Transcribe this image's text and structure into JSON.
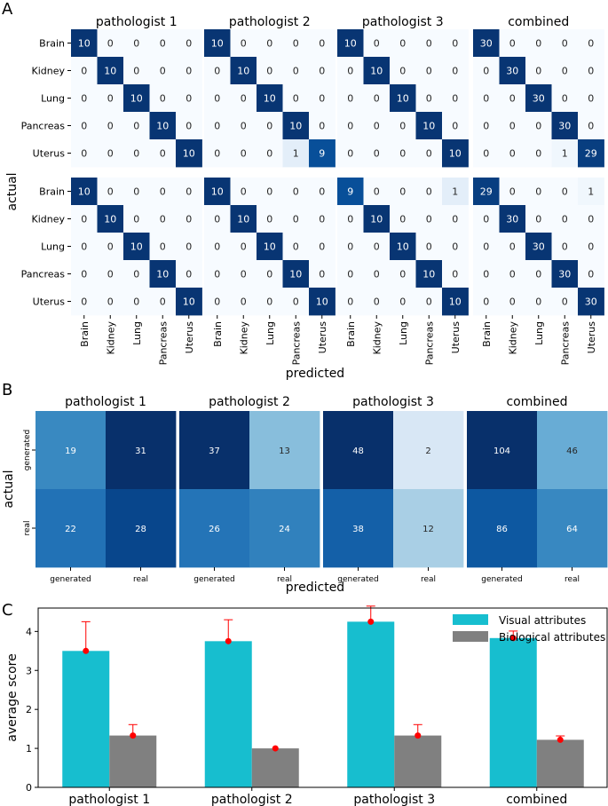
{
  "panel_letters": {
    "a": "A",
    "b": "B",
    "c": "C"
  },
  "chart_data": [
    {
      "type": "heatmap",
      "panel": "A",
      "titles": [
        "pathologist 1",
        "pathologist 2",
        "pathologist 3",
        "combined"
      ],
      "row_labels": [
        "Brain",
        "Kidney",
        "Lung",
        "Pancreas",
        "Uterus"
      ],
      "col_labels": [
        "Brain",
        "Kidney",
        "Lung",
        "Pancreas",
        "Uterus"
      ],
      "xlabel": "predicted",
      "ylabel": "actual",
      "groups": [
        {
          "matrices": [
            [
              [
                10,
                0,
                0,
                0,
                0
              ],
              [
                0,
                10,
                0,
                0,
                0
              ],
              [
                0,
                0,
                10,
                0,
                0
              ],
              [
                0,
                0,
                0,
                10,
                0
              ],
              [
                0,
                0,
                0,
                0,
                10
              ]
            ],
            [
              [
                10,
                0,
                0,
                0,
                0
              ],
              [
                0,
                10,
                0,
                0,
                0
              ],
              [
                0,
                0,
                10,
                0,
                0
              ],
              [
                0,
                0,
                0,
                10,
                0
              ],
              [
                0,
                0,
                0,
                1,
                9
              ]
            ],
            [
              [
                10,
                0,
                0,
                0,
                0
              ],
              [
                0,
                10,
                0,
                0,
                0
              ],
              [
                0,
                0,
                10,
                0,
                0
              ],
              [
                0,
                0,
                0,
                10,
                0
              ],
              [
                0,
                0,
                0,
                0,
                10
              ]
            ],
            [
              [
                30,
                0,
                0,
                0,
                0
              ],
              [
                0,
                30,
                0,
                0,
                0
              ],
              [
                0,
                0,
                30,
                0,
                0
              ],
              [
                0,
                0,
                0,
                30,
                0
              ],
              [
                0,
                0,
                0,
                1,
                29
              ]
            ]
          ]
        },
        {
          "matrices": [
            [
              [
                10,
                0,
                0,
                0,
                0
              ],
              [
                0,
                10,
                0,
                0,
                0
              ],
              [
                0,
                0,
                10,
                0,
                0
              ],
              [
                0,
                0,
                0,
                10,
                0
              ],
              [
                0,
                0,
                0,
                0,
                10
              ]
            ],
            [
              [
                10,
                0,
                0,
                0,
                0
              ],
              [
                0,
                10,
                0,
                0,
                0
              ],
              [
                0,
                0,
                10,
                0,
                0
              ],
              [
                0,
                0,
                0,
                10,
                0
              ],
              [
                0,
                0,
                0,
                0,
                10
              ]
            ],
            [
              [
                9,
                0,
                0,
                0,
                1
              ],
              [
                0,
                10,
                0,
                0,
                0
              ],
              [
                0,
                0,
                10,
                0,
                0
              ],
              [
                0,
                0,
                0,
                10,
                0
              ],
              [
                0,
                0,
                0,
                0,
                10
              ]
            ],
            [
              [
                29,
                0,
                0,
                0,
                1
              ],
              [
                0,
                30,
                0,
                0,
                0
              ],
              [
                0,
                0,
                30,
                0,
                0
              ],
              [
                0,
                0,
                0,
                30,
                0
              ],
              [
                0,
                0,
                0,
                0,
                30
              ]
            ]
          ]
        }
      ]
    },
    {
      "type": "heatmap",
      "panel": "B",
      "titles": [
        "pathologist 1",
        "pathologist 2",
        "pathologist 3",
        "combined"
      ],
      "row_labels": [
        "generated",
        "real"
      ],
      "col_labels": [
        "generated",
        "real"
      ],
      "xlabel": "predicted",
      "ylabel": "actual",
      "matrices": [
        [
          [
            19,
            31
          ],
          [
            22,
            28
          ]
        ],
        [
          [
            37,
            13
          ],
          [
            26,
            24
          ]
        ],
        [
          [
            48,
            2
          ],
          [
            38,
            12
          ]
        ],
        [
          [
            104,
            46
          ],
          [
            86,
            64
          ]
        ]
      ]
    },
    {
      "type": "bar",
      "panel": "C",
      "categories": [
        "pathologist 1",
        "pathologist 2",
        "pathologist 3",
        "combined"
      ],
      "ylabel": "average score",
      "ylim": [
        0,
        4.6
      ],
      "yticks": [
        0,
        1,
        2,
        3,
        4
      ],
      "legend_position": "top-right",
      "series": [
        {
          "name": "Visual attributes",
          "color": "#17becf",
          "values": [
            3.5,
            3.75,
            4.25,
            3.83
          ],
          "err": [
            0.75,
            0.55,
            0.4,
            0.18
          ]
        },
        {
          "name": "Biological attributes",
          "color": "#808080",
          "values": [
            1.33,
            1.0,
            1.33,
            1.22
          ],
          "err": [
            0.28,
            0.0,
            0.28,
            0.1
          ]
        }
      ],
      "marker_color": "#ff0000"
    }
  ]
}
